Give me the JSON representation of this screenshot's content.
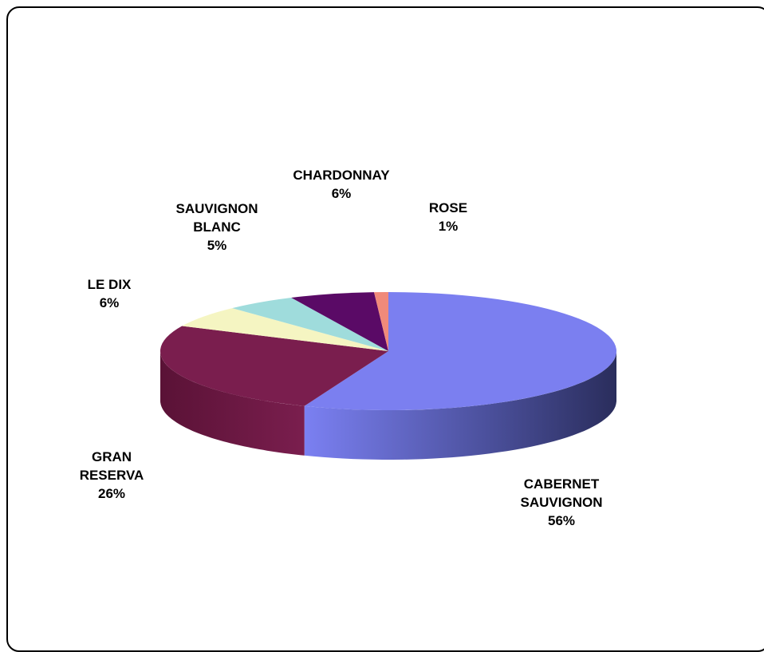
{
  "chart_data": {
    "type": "pie",
    "title": "",
    "slices": [
      {
        "label": [
          "CABERNET",
          "SAUVIGNON"
        ],
        "value": 56,
        "value_label": "56%",
        "color": "#7b7ff0",
        "side_color": "#3f4388"
      },
      {
        "label": [
          "GRAN",
          "RESERVA"
        ],
        "value": 26,
        "value_label": "26%",
        "color": "#7a1e4e",
        "side_color": "#5a1236"
      },
      {
        "label": [
          "LE DIX"
        ],
        "value": 6,
        "value_label": "6%",
        "color": "#f5f5c2",
        "side_color": "#c9c99a"
      },
      {
        "label": [
          "SAUVIGNON",
          "BLANC"
        ],
        "value": 5,
        "value_label": "5%",
        "color": "#9fdcdc",
        "side_color": "#6faaaa"
      },
      {
        "label": [
          "CHARDONNAY"
        ],
        "value": 6,
        "value_label": "6%",
        "color": "#5a0a66",
        "side_color": "#3c0545"
      },
      {
        "label": [
          "ROSE"
        ],
        "value": 1,
        "value_label": "1%",
        "color": "#f08a7a",
        "side_color": "#b86558"
      }
    ]
  }
}
